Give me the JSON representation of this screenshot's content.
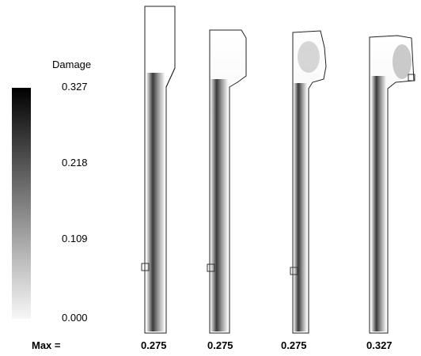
{
  "legend": {
    "title": "Damage",
    "ticks": [
      "0.327",
      "0.218",
      "0.109",
      "0.000"
    ],
    "colormap": {
      "max_color": "#000000",
      "min_color": "#f7f7f7"
    }
  },
  "max_row": {
    "label": "Max =",
    "values": [
      "0.275",
      "0.275",
      "0.275",
      "0.327"
    ]
  },
  "specimens": [
    {
      "max_damage": 0.275
    },
    {
      "max_damage": 0.275
    },
    {
      "max_damage": 0.275
    },
    {
      "max_damage": 0.327
    }
  ]
}
